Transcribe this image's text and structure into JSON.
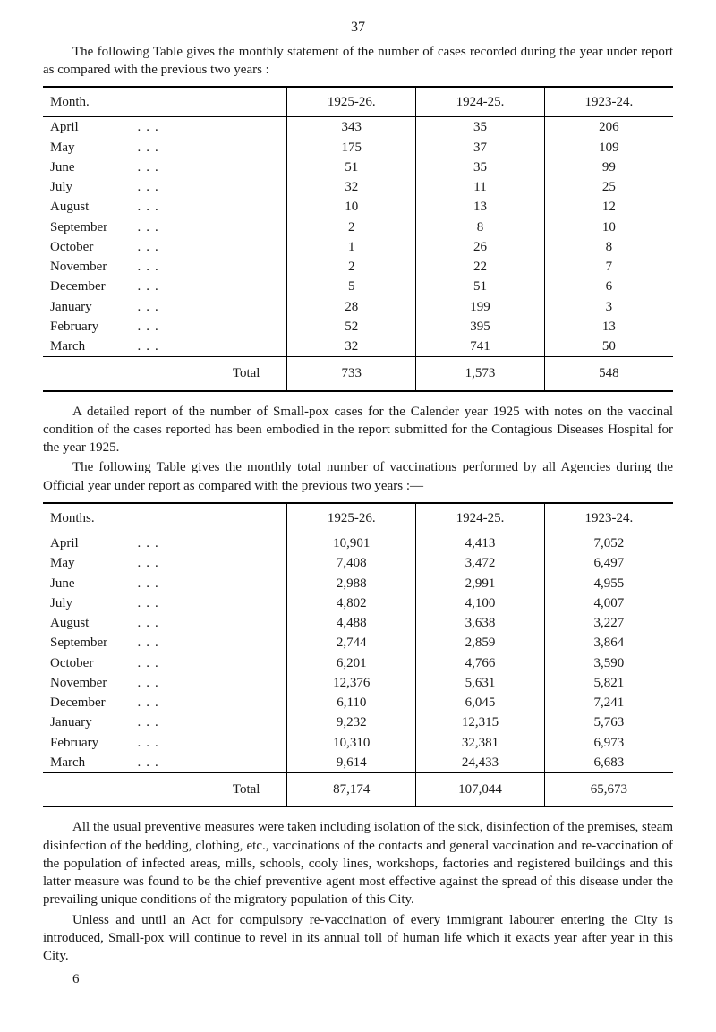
{
  "page_number": "37",
  "intro1": "The following Table gives the monthly statement of the number of cases recorded during the year under report as compared with the previous two years :",
  "table1": {
    "headers": [
      "Month.",
      "1925-26.",
      "1924-25.",
      "1923-24."
    ],
    "rows": [
      [
        "April",
        "343",
        "35",
        "206"
      ],
      [
        "May",
        "175",
        "37",
        "109"
      ],
      [
        "June",
        "51",
        "35",
        "99"
      ],
      [
        "July",
        "32",
        "11",
        "25"
      ],
      [
        "August",
        "10",
        "13",
        "12"
      ],
      [
        "September",
        "2",
        "8",
        "10"
      ],
      [
        "October",
        "1",
        "26",
        "8"
      ],
      [
        "November",
        "2",
        "22",
        "7"
      ],
      [
        "December",
        "5",
        "51",
        "6"
      ],
      [
        "January",
        "28",
        "199",
        "3"
      ],
      [
        "February",
        "52",
        "395",
        "13"
      ],
      [
        "March",
        "32",
        "741",
        "50"
      ]
    ],
    "total_label": "Total",
    "totals": [
      "733",
      "1,573",
      "548"
    ]
  },
  "para2a": "A detailed report of the number of Small-pox cases for the Calender year 1925 with notes on the vaccinal condition of the cases reported has been embodied in the report submitted for the Contagious Diseases Hospital for the year 1925.",
  "para2b": "The following Table gives the monthly total number of vaccinations per­formed by all Agencies during the Official year under report as compared with the previous two years :—",
  "table2": {
    "headers": [
      "Months.",
      "1925-26.",
      "1924-25.",
      "1923-24."
    ],
    "rows": [
      [
        "April",
        "10,901",
        "4,413",
        "7,052"
      ],
      [
        "May",
        "7,408",
        "3,472",
        "6,497"
      ],
      [
        "June",
        "2,988",
        "2,991",
        "4,955"
      ],
      [
        "July",
        "4,802",
        "4,100",
        "4,007"
      ],
      [
        "August",
        "4,488",
        "3,638",
        "3,227"
      ],
      [
        "September",
        "2,744",
        "2,859",
        "3,864"
      ],
      [
        "October",
        "6,201",
        "4,766",
        "3,590"
      ],
      [
        "November",
        "12,376",
        "5,631",
        "5,821"
      ],
      [
        "December",
        "6,110",
        "6,045",
        "7,241"
      ],
      [
        "January",
        "9,232",
        "12,315",
        "5,763"
      ],
      [
        "February",
        "10,310",
        "32,381",
        "6,973"
      ],
      [
        "March",
        "9,614",
        "24,433",
        "6,683"
      ]
    ],
    "total_label": "Total",
    "totals": [
      "87,174",
      "107,044",
      "65,673"
    ]
  },
  "para3": "All the usual preventive measures were taken including isolation of the sick, disinfection of the premises, steam disinfection of the bedding, clothing, etc., vaccinations of the contacts and general vaccination and re-vaccination of the population of infected areas, mills, schools, cooly lines, workshops, factories and registered buildings and this latter measure was found to be the chief preventive agent most effective against the spread of this disease under the prevailing unique conditions of the migratory population of this City.",
  "para4": "Unless and until an Act for compulsory re-vaccination of every immigrant labourer entering the City is introduced, Small-pox will continue to revel in its annual toll of human life which it exacts year after year in this City.",
  "footer": "6"
}
